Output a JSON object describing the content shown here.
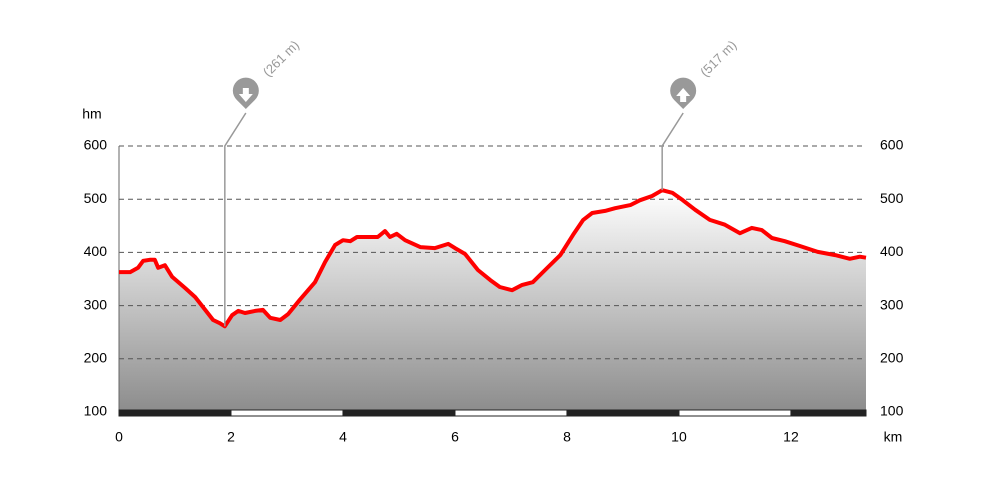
{
  "chart_data": {
    "type": "line",
    "y_axis_label": "hm",
    "x_axis_label": "km",
    "x": [
      0,
      0.2,
      0.34,
      0.43,
      0.55,
      0.64,
      0.7,
      0.82,
      0.95,
      1.18,
      1.36,
      1.54,
      1.68,
      1.8,
      1.89,
      2.02,
      2.13,
      2.25,
      2.43,
      2.57,
      2.7,
      2.88,
      3.02,
      3.23,
      3.5,
      3.68,
      3.86,
      4.0,
      4.13,
      4.25,
      4.48,
      4.62,
      4.75,
      4.84,
      4.96,
      5.11,
      5.38,
      5.64,
      5.88,
      6.0,
      6.18,
      6.41,
      6.63,
      6.8,
      7.02,
      7.2,
      7.39,
      7.61,
      7.88,
      8.11,
      8.29,
      8.45,
      8.68,
      8.86,
      9.13,
      9.3,
      9.52,
      9.7,
      9.88,
      10.07,
      10.29,
      10.55,
      10.82,
      11.09,
      11.3,
      11.48,
      11.66,
      11.89,
      12.16,
      12.48,
      12.79,
      13.05,
      13.23,
      13.34
    ],
    "series": [
      {
        "color": "#ff0000",
        "values": [
          363,
          363,
          371,
          384,
          386,
          386,
          371,
          376,
          354,
          333,
          316,
          292,
          273,
          267,
          261,
          282,
          290,
          286,
          290,
          292,
          277,
          273,
          284,
          311,
          344,
          382,
          414,
          423,
          421,
          429,
          429,
          429,
          440,
          429,
          435,
          423,
          410,
          408,
          416,
          408,
          397,
          367,
          348,
          335,
          329,
          339,
          344,
          367,
          395,
          433,
          461,
          474,
          478,
          483,
          489,
          498,
          506,
          517,
          512,
          498,
          480,
          461,
          452,
          436,
          446,
          442,
          427,
          421,
          412,
          401,
          395,
          388,
          392,
          390
        ]
      }
    ],
    "annotations": [
      {
        "x": 1.89,
        "value": 261,
        "label": "(261 m)"
      },
      {
        "x": 9.7,
        "value": 517,
        "label": "(517 m)"
      }
    ],
    "xlim": [
      0,
      13.34
    ],
    "xticks": [
      0,
      2,
      4,
      6,
      8,
      10,
      12
    ],
    "ylim": [
      100,
      600
    ],
    "yticks": [
      100,
      200,
      300,
      400,
      500,
      600
    ],
    "grid": true
  }
}
